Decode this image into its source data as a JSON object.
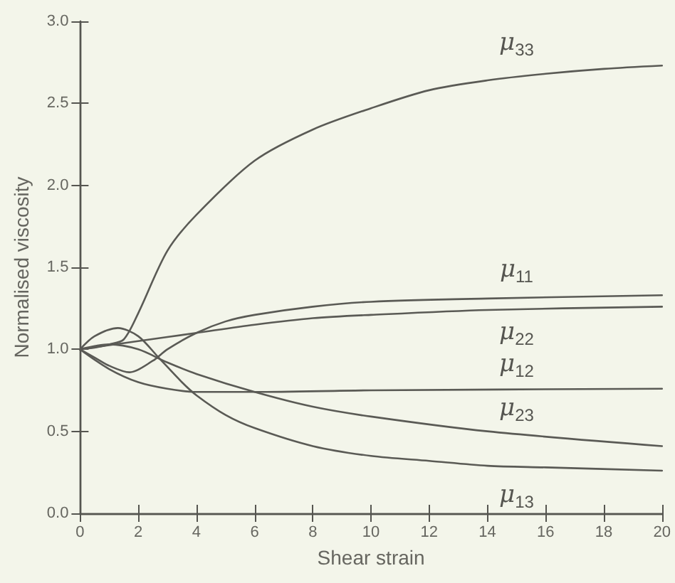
{
  "chart_data": {
    "type": "line",
    "xlabel": "Shear strain",
    "ylabel": "Normalised viscosity",
    "xlim": [
      0,
      20
    ],
    "xticks": [
      0,
      2,
      4,
      6,
      8,
      10,
      12,
      14,
      16,
      18,
      20
    ],
    "ylim": [
      0,
      3
    ],
    "yticks": [
      {
        "value": 0,
        "label": "0.0"
      },
      {
        "value": 0.5,
        "label": "0.5"
      },
      {
        "value": 1,
        "label": "1.0"
      },
      {
        "value": 1.5,
        "label": "1.5"
      },
      {
        "value": 2,
        "label": "2.0"
      },
      {
        "value": 2.5,
        "label": "2.5"
      },
      {
        "value": 3,
        "label": "3.0"
      }
    ],
    "grid": false,
    "marker": "none",
    "line_style": "solid",
    "series": [
      {
        "name": "μ$_{33}$",
        "color": "#5a5a55",
        "x": [
          0,
          0.5,
          1,
          1.5,
          2,
          3,
          4,
          6,
          8,
          10,
          12,
          14,
          16,
          18,
          20
        ],
        "values": [
          1,
          1.01,
          1.03,
          1.06,
          1.22,
          1.6,
          1.82,
          2.15,
          2.34,
          2.47,
          2.58,
          2.64,
          2.68,
          2.71,
          2.73
        ]
      },
      {
        "name": "μ$_{11}$",
        "color": "#5a5a55",
        "x": [
          0,
          0.5,
          1,
          1.7,
          2.5,
          3,
          4,
          5,
          6,
          8,
          10,
          14,
          20
        ],
        "values": [
          1,
          0.95,
          0.9,
          0.86,
          0.93,
          1.0,
          1.1,
          1.17,
          1.21,
          1.26,
          1.29,
          1.31,
          1.33
        ]
      },
      {
        "name": "μ$_{22}$",
        "color": "#5a5a55",
        "x": [
          0,
          2,
          4,
          6,
          8,
          10,
          14,
          20
        ],
        "values": [
          1,
          1.05,
          1.1,
          1.15,
          1.19,
          1.21,
          1.24,
          1.26
        ]
      },
      {
        "name": "μ$_{12}$",
        "color": "#5a5a55",
        "x": [
          0,
          1,
          2,
          3,
          4,
          6,
          10,
          20
        ],
        "values": [
          1,
          0.88,
          0.8,
          0.76,
          0.74,
          0.74,
          0.75,
          0.76
        ]
      },
      {
        "name": "μ$_{23}$",
        "color": "#5a5a55",
        "x": [
          0,
          1,
          2,
          3,
          4,
          6,
          8,
          10,
          14,
          20
        ],
        "values": [
          1,
          1.03,
          1.0,
          0.92,
          0.85,
          0.74,
          0.65,
          0.59,
          0.5,
          0.41
        ]
      },
      {
        "name": "μ$_{13}$",
        "color": "#5a5a55",
        "x": [
          0,
          0.5,
          1.3,
          2,
          2.7,
          3.5,
          4,
          5,
          6,
          8,
          10,
          12,
          14,
          16,
          20
        ],
        "values": [
          1,
          1.08,
          1.13,
          1.08,
          0.95,
          0.8,
          0.72,
          0.6,
          0.52,
          0.41,
          0.35,
          0.32,
          0.29,
          0.28,
          0.26
        ]
      }
    ]
  }
}
